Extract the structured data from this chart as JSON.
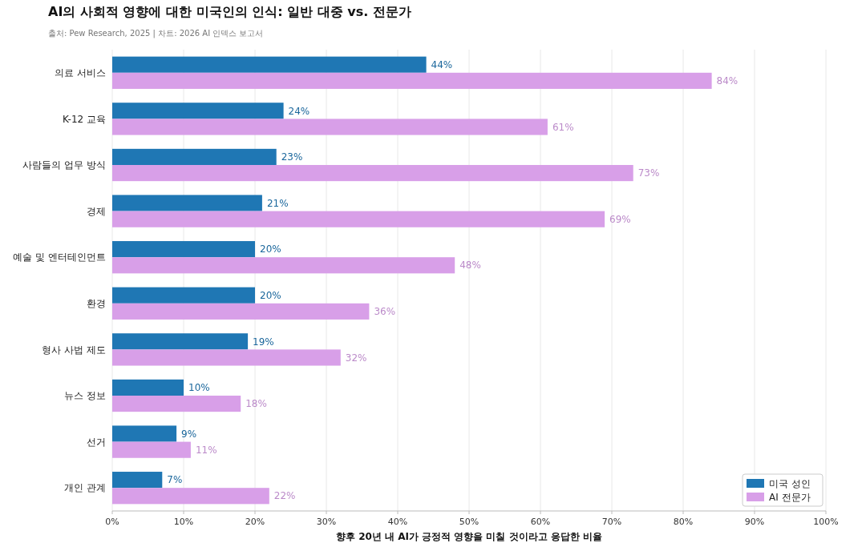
{
  "chart_data": {
    "type": "bar",
    "orientation": "horizontal",
    "title": "AI의 사회적 영향에 대한 미국인의 인식: 일반 대중 vs. 전문가",
    "subtitle": "출처: Pew Research, 2025 | 차트: 2026 AI 인덱스 보고서",
    "xlabel": "향후 20년 내 AI가 긍정적 영향을 미칠 것이라고 응답한 비율",
    "categories": [
      "의료 서비스",
      "K-12 교육",
      "사람들의 업무 방식",
      "경제",
      "예술 및 엔터테인먼트",
      "환경",
      "형사 사법 제도",
      "뉴스 정보",
      "선거",
      "개인 관계"
    ],
    "series": [
      {
        "name": "미국 성인",
        "color": "#1f77b4",
        "values": [
          44,
          24,
          23,
          21,
          20,
          20,
          19,
          10,
          9,
          7
        ],
        "value_labels": [
          "44%",
          "24%",
          "23%",
          "21%",
          "20%",
          "20%",
          "19%",
          "10%",
          "9%",
          "7%"
        ]
      },
      {
        "name": "AI 전문가",
        "color": "#d89fe8",
        "values": [
          84,
          61,
          73,
          69,
          48,
          36,
          32,
          18,
          11,
          22
        ],
        "value_labels": [
          "84%",
          "61%",
          "73%",
          "69%",
          "48%",
          "36%",
          "32%",
          "18%",
          "11%",
          "22%"
        ]
      }
    ],
    "xlim": [
      0,
      100
    ],
    "xticks": [
      {
        "value": 0,
        "label": "0%"
      },
      {
        "value": 10,
        "label": "10%"
      },
      {
        "value": 20,
        "label": "20%"
      },
      {
        "value": 30,
        "label": "30%"
      },
      {
        "value": 40,
        "label": "40%"
      },
      {
        "value": 50,
        "label": "50%"
      },
      {
        "value": 60,
        "label": "60%"
      },
      {
        "value": 70,
        "label": "70%"
      },
      {
        "value": 80,
        "label": "80%"
      },
      {
        "value": 90,
        "label": "90%"
      },
      {
        "value": 100,
        "label": "100%"
      }
    ],
    "grid": "x",
    "legend": "bottom right"
  }
}
